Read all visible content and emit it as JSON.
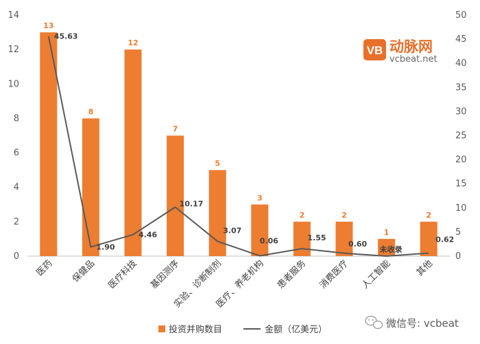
{
  "chart_data": {
    "type": "bar",
    "categories": [
      "医药",
      "保健品",
      "医疗科技",
      "基因测序",
      "实验、诊断制剂",
      "医疗、养老机构",
      "患者服务",
      "消费医疗",
      "人工智能",
      "其他"
    ],
    "series": [
      {
        "name": "投资并购数目",
        "type": "bar",
        "axis": "left",
        "color": "#ED7D31",
        "values": [
          13,
          8,
          12,
          7,
          5,
          3,
          2,
          2,
          1,
          2
        ],
        "labels": [
          "13",
          "8",
          "12",
          "7",
          "5",
          "3",
          "2",
          "2",
          "1",
          "2"
        ]
      },
      {
        "name": "金额（亿美元）",
        "type": "line",
        "axis": "right",
        "color": "#595959",
        "values": [
          45.63,
          1.9,
          4.46,
          10.17,
          3.07,
          0.06,
          1.55,
          0.6,
          0,
          0.62
        ],
        "labels": [
          "45.63",
          "1.90",
          "4.46",
          "10.17",
          "3.07",
          "0.06",
          "1.55",
          "0.60",
          "未收录",
          "0.62"
        ]
      }
    ],
    "y_left": {
      "min": 0,
      "max": 14,
      "ticks": [
        "0",
        "2",
        "4",
        "6",
        "8",
        "10",
        "12",
        "14"
      ]
    },
    "y_right": {
      "min": 0,
      "max": 50,
      "ticks": [
        "0",
        "5",
        "10",
        "15",
        "20",
        "25",
        "30",
        "35",
        "40",
        "45",
        "50"
      ]
    },
    "grid": false,
    "legend": "bottom"
  },
  "brand": {
    "name": "动脉网",
    "url": "vcbeat.net",
    "logo_text": "VB"
  },
  "wechat": {
    "text": "微信号: vcbeat"
  }
}
